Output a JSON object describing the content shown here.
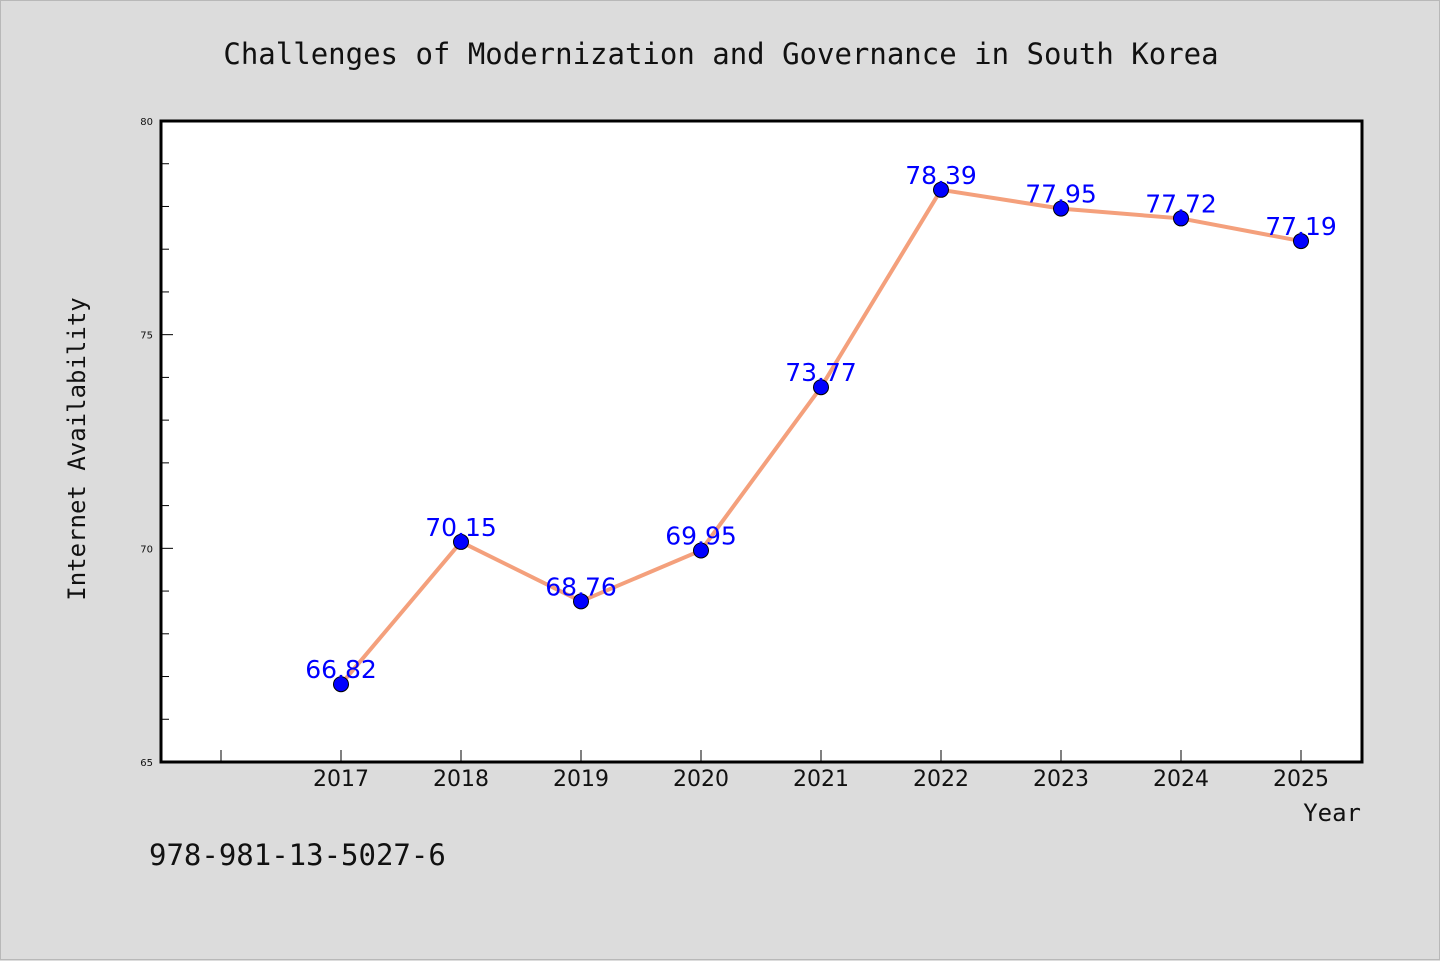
{
  "footer": {
    "isbn": "978-981-13-5027-6"
  },
  "chart_data": {
    "type": "line",
    "title": "Challenges of Modernization and Governance in South Korea",
    "xlabel": "Year",
    "ylabel": "Internet Availability",
    "categories": [
      "2017",
      "2018",
      "2019",
      "2020",
      "2021",
      "2022",
      "2023",
      "2024",
      "2025"
    ],
    "series": [
      {
        "values": [
          66.82,
          70.15,
          68.76,
          69.95,
          73.77,
          78.39,
          77.95,
          77.72,
          77.19
        ]
      }
    ],
    "data_labels": [
      "66.82",
      "70.15",
      "68.76",
      "69.95",
      "73.77",
      "78.39",
      "77.95",
      "77.72",
      "77.19"
    ],
    "ylim": [
      65,
      80
    ],
    "yticks": [
      65,
      70,
      75,
      80
    ],
    "ytick_labels": [
      "65",
      "70",
      "75",
      "80"
    ],
    "grid": false,
    "line_color": "#f4a07c",
    "marker_color": "#0000ff",
    "label_color": "#0000ff",
    "background_color": "#dcdcdc",
    "plot_background_color": "#ffffff"
  }
}
